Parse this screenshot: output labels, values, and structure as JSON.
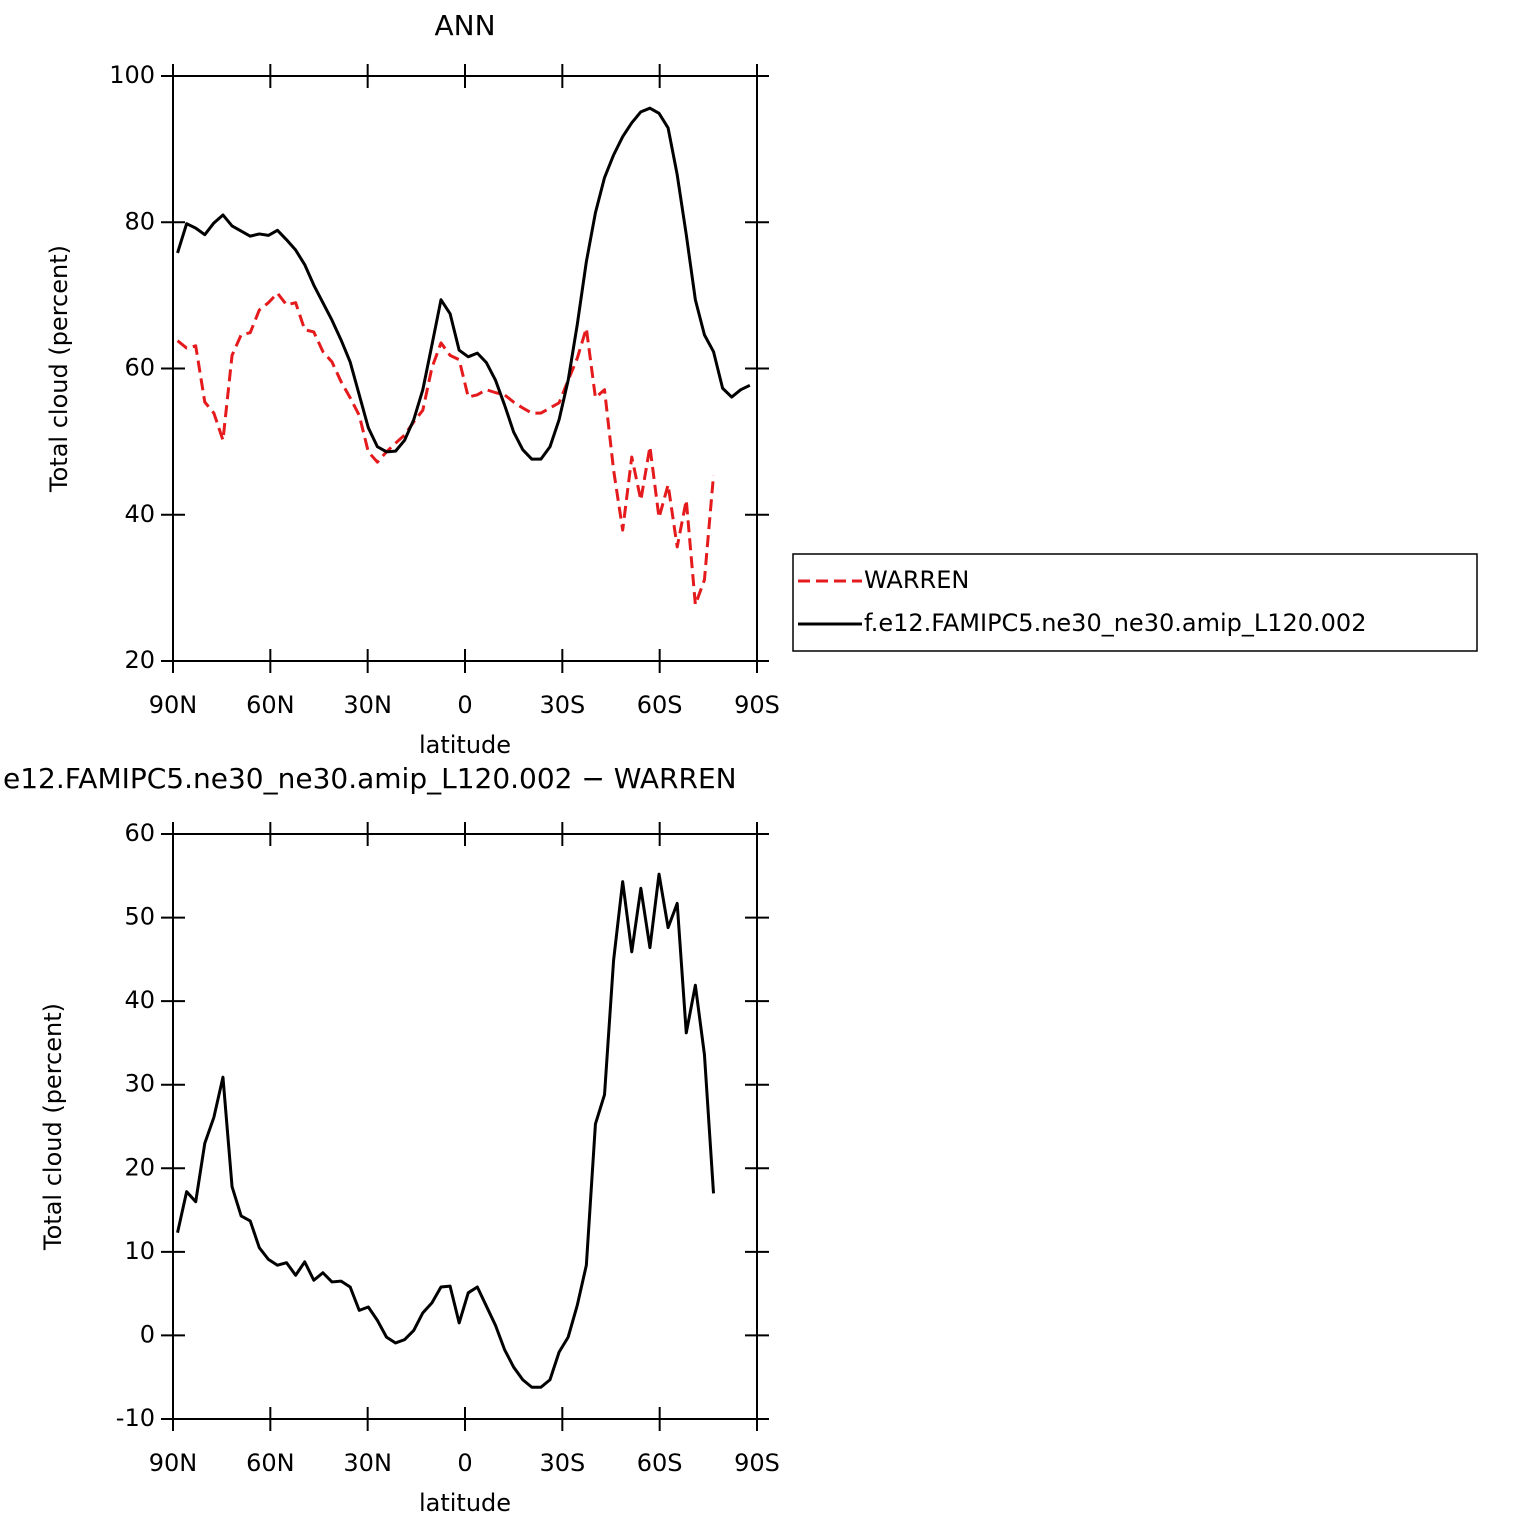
{
  "chart_data": [
    {
      "type": "line",
      "title": "ANN",
      "xlabel": "latitude",
      "ylabel": "Total cloud (percent)",
      "x": [
        88.6,
        85.8,
        83.0,
        80.2,
        77.4,
        74.6,
        71.8,
        69.0,
        66.2,
        63.4,
        60.6,
        57.8,
        55.0,
        52.2,
        49.4,
        46.6,
        43.8,
        41.0,
        38.2,
        35.4,
        32.6,
        29.8,
        27.0,
        24.2,
        21.4,
        18.6,
        15.8,
        13.0,
        10.2,
        7.4,
        4.6,
        1.8,
        -1.0,
        -3.8,
        -6.6,
        -9.4,
        -12.2,
        -15.0,
        -17.8,
        -20.6,
        -23.4,
        -26.2,
        -29.0,
        -31.8,
        -34.6,
        -37.4,
        -40.2,
        -43.0,
        -45.8,
        -48.6,
        -51.4,
        -54.2,
        -57.0,
        -59.8,
        -62.6,
        -65.4,
        -68.2,
        -71.0,
        -73.8,
        -76.6,
        -79.4,
        -82.2,
        -85.0,
        -87.8
      ],
      "series": [
        {
          "name": "WARREN",
          "color": "#e41a1c",
          "linestyle": "dashed",
          "values": [
            63.8,
            62.8,
            63.1,
            55.4,
            53.9,
            50.2,
            61.8,
            64.6,
            64.9,
            68.0,
            69.0,
            70.3,
            68.7,
            69.0,
            65.3,
            65.0,
            62.3,
            60.9,
            58.2,
            56.0,
            53.6,
            48.6,
            47.2,
            48.6,
            49.8,
            50.9,
            52.7,
            54.3,
            60.1,
            63.5,
            61.8,
            61.2,
            56.1,
            56.4,
            57.1,
            56.7,
            56.4,
            55.4,
            54.6,
            53.9,
            53.9,
            54.6,
            55.3,
            58.4,
            61.4,
            65.5,
            56.0,
            57.1,
            46.1,
            37.9,
            47.9,
            42.0,
            49.3,
            39.6,
            44.1,
            35.6,
            42.0,
            27.7,
            31.1,
            45.4,
            null,
            null,
            null,
            null
          ]
        },
        {
          "name": "f.e12.FAMIPC5.ne30_ne30.amip_L120.002",
          "color": "#000000",
          "linestyle": "solid",
          "values": [
            75.8,
            79.8,
            79.2,
            78.3,
            79.9,
            81.0,
            79.5,
            78.8,
            78.1,
            78.4,
            78.2,
            78.9,
            77.6,
            76.2,
            74.2,
            71.4,
            69.0,
            66.6,
            63.9,
            60.9,
            56.4,
            51.9,
            49.3,
            48.6,
            48.7,
            50.2,
            53.0,
            57.1,
            63.2,
            69.4,
            67.5,
            62.5,
            61.6,
            62.1,
            60.8,
            58.4,
            55.0,
            51.3,
            48.9,
            47.6,
            47.6,
            49.3,
            53.0,
            58.4,
            66.0,
            74.6,
            81.3,
            86.1,
            89.2,
            91.7,
            93.6,
            95.1,
            95.6,
            94.9,
            92.9,
            86.5,
            78.3,
            69.4,
            64.6,
            62.3,
            57.3,
            56.1,
            57.1,
            57.7
          ]
        }
      ],
      "xlim": [
        90,
        -90
      ],
      "xticks": [
        {
          "value": 90,
          "label": "90N"
        },
        {
          "value": 60,
          "label": "60N"
        },
        {
          "value": 30,
          "label": "30N"
        },
        0,
        {
          "value": -30,
          "label": "30S"
        },
        {
          "value": -60,
          "label": "60S"
        },
        {
          "value": -90,
          "label": "90S"
        }
      ],
      "ylim": [
        20,
        100
      ],
      "yticks": [
        20,
        40,
        60,
        80,
        100
      ],
      "legend": "right"
    },
    {
      "type": "line",
      "title": "e12.FAMIPC5.ne30_ne30.amip_L120.002 − WARREN",
      "xlabel": "latitude",
      "ylabel": "Total cloud (percent)",
      "x": [
        88.6,
        85.8,
        83.0,
        80.2,
        77.4,
        74.6,
        71.8,
        69.0,
        66.2,
        63.4,
        60.6,
        57.8,
        55.0,
        52.2,
        49.4,
        46.6,
        43.8,
        41.0,
        38.2,
        35.4,
        32.6,
        29.8,
        27.0,
        24.2,
        21.4,
        18.6,
        15.8,
        13.0,
        10.2,
        7.4,
        4.6,
        1.8,
        -1.0,
        -3.8,
        -6.6,
        -9.4,
        -12.2,
        -15.0,
        -17.8,
        -20.6,
        -23.4,
        -26.2,
        -29.0,
        -31.8,
        -34.6,
        -37.4,
        -40.2,
        -43.0,
        -45.8,
        -48.6,
        -51.4,
        -54.2,
        -57.0,
        -59.8,
        -62.6,
        -65.4,
        -68.2,
        -71.0,
        -73.8,
        -76.6,
        -79.4,
        -82.2,
        -85.0,
        -87.8
      ],
      "color": "#000000",
      "values": [
        12.3,
        17.2,
        16.0,
        23.0,
        26.1,
        30.9,
        17.8,
        14.3,
        13.7,
        10.5,
        9.1,
        8.4,
        8.7,
        7.2,
        8.8,
        6.6,
        7.5,
        6.4,
        6.5,
        5.8,
        3.0,
        3.4,
        1.8,
        -0.2,
        -0.9,
        -0.5,
        0.6,
        2.7,
        3.9,
        5.8,
        5.9,
        1.5,
        5.1,
        5.8,
        3.5,
        1.2,
        -1.7,
        -3.8,
        -5.3,
        -6.2,
        -6.2,
        -5.3,
        -2.0,
        -0.2,
        3.6,
        8.4,
        25.3,
        28.8,
        44.9,
        54.3,
        45.9,
        53.5,
        46.4,
        55.2,
        48.8,
        51.7,
        36.2,
        41.9,
        33.6,
        17.0,
        null,
        null,
        null,
        null
      ],
      "xlim": [
        90,
        -90
      ],
      "xticks": [
        {
          "value": 90,
          "label": "90N"
        },
        {
          "value": 60,
          "label": "60N"
        },
        {
          "value": 30,
          "label": "30N"
        },
        0,
        {
          "value": -30,
          "label": "30S"
        },
        {
          "value": -60,
          "label": "60S"
        },
        {
          "value": -90,
          "label": "90S"
        }
      ],
      "ylim": [
        -10,
        60
      ],
      "yticks": [
        -10,
        0,
        10,
        20,
        30,
        40,
        50,
        60
      ]
    }
  ]
}
